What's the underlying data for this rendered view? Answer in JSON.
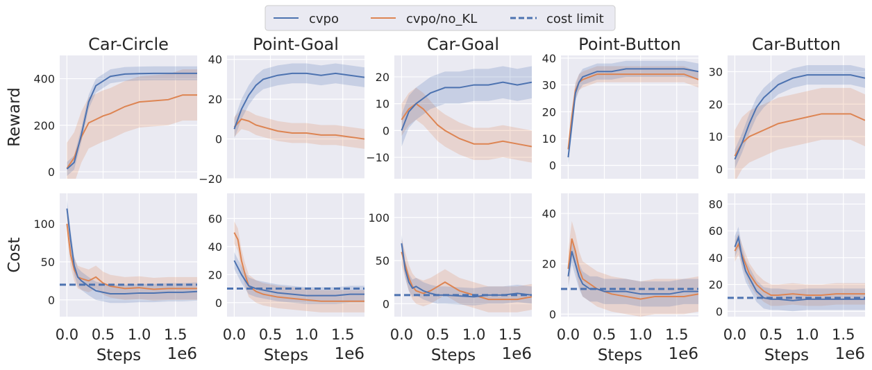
{
  "legend": {
    "entries": [
      {
        "label": "cvpo",
        "color": "#4c72b0",
        "style": "solid"
      },
      {
        "label": "cvpo/no_KL",
        "color": "#dd8452",
        "style": "solid"
      },
      {
        "label": "cost limit",
        "color": "#4c72b0",
        "style": "dashed"
      }
    ]
  },
  "chart_data": [
    {
      "type": "line",
      "title": "Car-Circle",
      "row": "reward",
      "ylabel": "Reward",
      "xlabel": "",
      "xlim": [
        -0.1,
        1.8
      ],
      "ylim": [
        -30,
        500
      ],
      "yticks": [
        {
          "v": 0,
          "label": "0"
        },
        {
          "v": 200,
          "label": "200"
        },
        {
          "v": 400,
          "label": "400"
        }
      ],
      "x": [
        0.0,
        0.1,
        0.2,
        0.3,
        0.4,
        0.5,
        0.6,
        0.8,
        1.0,
        1.2,
        1.4,
        1.6,
        1.8
      ],
      "series": [
        {
          "name": "cvpo",
          "values": [
            12,
            40,
            160,
            300,
            370,
            390,
            410,
            420,
            422,
            423,
            423,
            423,
            423
          ],
          "band": 30
        },
        {
          "name": "cvpo/no_KL",
          "values": [
            15,
            60,
            150,
            210,
            225,
            240,
            250,
            280,
            300,
            305,
            310,
            330,
            330
          ],
          "band": 110
        }
      ]
    },
    {
      "type": "line",
      "title": "Point-Goal",
      "row": "reward",
      "xlabel": "",
      "xlim": [
        -0.1,
        1.8
      ],
      "ylim": [
        -20,
        42
      ],
      "yticks": [
        {
          "v": -20,
          "label": "−20"
        },
        {
          "v": 0,
          "label": "0"
        },
        {
          "v": 20,
          "label": "20"
        },
        {
          "v": 40,
          "label": "40"
        }
      ],
      "x": [
        0.0,
        0.1,
        0.2,
        0.3,
        0.4,
        0.5,
        0.6,
        0.8,
        1.0,
        1.2,
        1.4,
        1.6,
        1.8
      ],
      "series": [
        {
          "name": "cvpo",
          "values": [
            5,
            15,
            22,
            27,
            30,
            31,
            32,
            33,
            33,
            32,
            33,
            32,
            31
          ],
          "band": 5
        },
        {
          "name": "cvpo/no_KL",
          "values": [
            6,
            10,
            9,
            7,
            6,
            5,
            4,
            3,
            3,
            2,
            2,
            1,
            0
          ],
          "band": 5
        }
      ]
    },
    {
      "type": "line",
      "title": "Car-Goal",
      "row": "reward",
      "xlabel": "",
      "xlim": [
        -0.1,
        1.8
      ],
      "ylim": [
        -18,
        28
      ],
      "yticks": [
        {
          "v": -10,
          "label": "−10"
        },
        {
          "v": 0,
          "label": "0"
        },
        {
          "v": 10,
          "label": "10"
        },
        {
          "v": 20,
          "label": "20"
        }
      ],
      "x": [
        0.0,
        0.1,
        0.2,
        0.3,
        0.4,
        0.5,
        0.6,
        0.8,
        1.0,
        1.2,
        1.4,
        1.6,
        1.8
      ],
      "series": [
        {
          "name": "cvpo",
          "values": [
            0,
            7,
            10,
            12,
            14,
            15,
            16,
            16,
            17,
            17,
            18,
            17,
            18
          ],
          "band": 6
        },
        {
          "name": "cvpo/no_KL",
          "values": [
            4,
            8,
            10,
            8,
            5,
            2,
            0,
            -3,
            -5,
            -5,
            -4,
            -5,
            -6
          ],
          "band": 6
        }
      ]
    },
    {
      "type": "line",
      "title": "Point-Button",
      "row": "reward",
      "xlabel": "",
      "xlim": [
        -0.1,
        1.8
      ],
      "ylim": [
        -5,
        41
      ],
      "yticks": [
        {
          "v": 0,
          "label": "0"
        },
        {
          "v": 10,
          "label": "10"
        },
        {
          "v": 20,
          "label": "20"
        },
        {
          "v": 30,
          "label": "30"
        },
        {
          "v": 40,
          "label": "40"
        }
      ],
      "x": [
        0.0,
        0.05,
        0.1,
        0.15,
        0.2,
        0.3,
        0.4,
        0.6,
        0.8,
        1.0,
        1.2,
        1.4,
        1.6,
        1.8
      ],
      "series": [
        {
          "name": "cvpo",
          "values": [
            3,
            15,
            27,
            31,
            33,
            34,
            35,
            35,
            36,
            36,
            36,
            36,
            36,
            35
          ],
          "band": 3
        },
        {
          "name": "cvpo/no_KL",
          "values": [
            6,
            18,
            28,
            31,
            32,
            33,
            34,
            34,
            34,
            34,
            34,
            34,
            34,
            32
          ],
          "band": 3
        }
      ]
    },
    {
      "type": "line",
      "title": "Car-Button",
      "row": "reward",
      "xlabel": "",
      "xlim": [
        -0.1,
        1.8
      ],
      "ylim": [
        -3,
        35
      ],
      "yticks": [
        {
          "v": 0,
          "label": "0"
        },
        {
          "v": 10,
          "label": "10"
        },
        {
          "v": 20,
          "label": "20"
        },
        {
          "v": 30,
          "label": "30"
        }
      ],
      "x": [
        0.0,
        0.1,
        0.2,
        0.3,
        0.4,
        0.5,
        0.6,
        0.8,
        1.0,
        1.2,
        1.4,
        1.6,
        1.8
      ],
      "series": [
        {
          "name": "cvpo",
          "values": [
            3,
            8,
            14,
            19,
            22,
            24,
            26,
            28,
            29,
            29,
            29,
            29,
            28
          ],
          "band": 3
        },
        {
          "name": "cvpo/no_KL",
          "values": [
            4,
            8,
            10,
            11,
            12,
            13,
            14,
            15,
            16,
            17,
            17,
            17,
            15
          ],
          "band": 8
        }
      ]
    },
    {
      "type": "line",
      "title": "",
      "row": "cost",
      "ylabel": "Cost",
      "xlabel": "Steps",
      "offset_label": "1e6",
      "xlim": [
        -0.1,
        1.8
      ],
      "ylim": [
        -22,
        140
      ],
      "cost_limit": 20,
      "yticks": [
        {
          "v": 0,
          "label": "0"
        },
        {
          "v": 50,
          "label": "50"
        },
        {
          "v": 100,
          "label": "100"
        }
      ],
      "xticks": [
        {
          "v": 0.0,
          "label": "0.0"
        },
        {
          "v": 0.5,
          "label": "0.5"
        },
        {
          "v": 1.0,
          "label": "1.0"
        },
        {
          "v": 1.5,
          "label": "1.5"
        }
      ],
      "x": [
        0.0,
        0.05,
        0.1,
        0.15,
        0.2,
        0.3,
        0.4,
        0.5,
        0.6,
        0.8,
        1.0,
        1.2,
        1.4,
        1.6,
        1.8
      ],
      "series": [
        {
          "name": "cvpo",
          "values": [
            120,
            80,
            45,
            30,
            25,
            18,
            12,
            10,
            8,
            8,
            9,
            9,
            10,
            10,
            11
          ],
          "band": 12
        },
        {
          "name": "cvpo/no_KL",
          "values": [
            100,
            60,
            40,
            30,
            28,
            25,
            30,
            22,
            18,
            15,
            16,
            14,
            15,
            15,
            15
          ],
          "band": 15
        }
      ]
    },
    {
      "type": "line",
      "title": "",
      "row": "cost",
      "xlabel": "Steps",
      "offset_label": "1e6",
      "xlim": [
        -0.1,
        1.8
      ],
      "ylim": [
        -10,
        78
      ],
      "cost_limit": 10,
      "yticks": [
        {
          "v": 0,
          "label": "0"
        },
        {
          "v": 20,
          "label": "20"
        },
        {
          "v": 40,
          "label": "40"
        },
        {
          "v": 60,
          "label": "60"
        }
      ],
      "xticks": [
        {
          "v": 0.0,
          "label": "0.0"
        },
        {
          "v": 0.5,
          "label": "0.5"
        },
        {
          "v": 1.0,
          "label": "1.0"
        },
        {
          "v": 1.5,
          "label": "1.5"
        }
      ],
      "x": [
        0.0,
        0.05,
        0.1,
        0.15,
        0.2,
        0.3,
        0.4,
        0.5,
        0.6,
        0.8,
        1.0,
        1.2,
        1.4,
        1.6,
        1.8
      ],
      "series": [
        {
          "name": "cvpo",
          "values": [
            30,
            25,
            20,
            16,
            12,
            10,
            9,
            8,
            7,
            6,
            5,
            5,
            5,
            6,
            6
          ],
          "band": 6
        },
        {
          "name": "cvpo/no_KL",
          "values": [
            50,
            45,
            30,
            20,
            12,
            8,
            6,
            5,
            4,
            3,
            2,
            1,
            1,
            1,
            1
          ],
          "band": 8
        }
      ]
    },
    {
      "type": "line",
      "title": "",
      "row": "cost",
      "xlabel": "Steps",
      "offset_label": "1e6",
      "xlim": [
        -0.1,
        1.8
      ],
      "ylim": [
        -15,
        128
      ],
      "cost_limit": 10,
      "yticks": [
        {
          "v": 0,
          "label": "0"
        },
        {
          "v": 50,
          "label": "50"
        },
        {
          "v": 100,
          "label": "100"
        }
      ],
      "xticks": [
        {
          "v": 0.0,
          "label": "0.0"
        },
        {
          "v": 0.5,
          "label": "0.5"
        },
        {
          "v": 1.0,
          "label": "1.0"
        },
        {
          "v": 1.5,
          "label": "1.5"
        }
      ],
      "x": [
        0.0,
        0.05,
        0.1,
        0.15,
        0.2,
        0.3,
        0.4,
        0.5,
        0.6,
        0.8,
        1.0,
        1.2,
        1.4,
        1.6,
        1.8
      ],
      "series": [
        {
          "name": "cvpo",
          "values": [
            70,
            40,
            25,
            18,
            20,
            15,
            12,
            10,
            10,
            9,
            8,
            10,
            10,
            12,
            10
          ],
          "band": 10
        },
        {
          "name": "cvpo/no_KL",
          "values": [
            60,
            45,
            30,
            20,
            15,
            12,
            15,
            20,
            25,
            15,
            10,
            5,
            5,
            5,
            8
          ],
          "band": 15
        }
      ]
    },
    {
      "type": "line",
      "title": "",
      "row": "cost",
      "xlabel": "Steps",
      "offset_label": "1e6",
      "xlim": [
        -0.1,
        1.8
      ],
      "ylim": [
        -1,
        48
      ],
      "cost_limit": 10,
      "yticks": [
        {
          "v": 0,
          "label": "0"
        },
        {
          "v": 20,
          "label": "20"
        },
        {
          "v": 40,
          "label": "40"
        }
      ],
      "xticks": [
        {
          "v": 0.0,
          "label": "0.0"
        },
        {
          "v": 0.5,
          "label": "0.5"
        },
        {
          "v": 1.0,
          "label": "1.0"
        },
        {
          "v": 1.5,
          "label": "1.5"
        }
      ],
      "x": [
        0.0,
        0.05,
        0.1,
        0.15,
        0.2,
        0.3,
        0.4,
        0.5,
        0.6,
        0.8,
        1.0,
        1.2,
        1.4,
        1.6,
        1.8
      ],
      "series": [
        {
          "name": "cvpo",
          "values": [
            15,
            25,
            20,
            15,
            12,
            10,
            10,
            9,
            9,
            9,
            8,
            8,
            8,
            9,
            9
          ],
          "band": 5
        },
        {
          "name": "cvpo/no_KL",
          "values": [
            18,
            30,
            25,
            18,
            14,
            12,
            10,
            9,
            8,
            7,
            6,
            7,
            7,
            7,
            8
          ],
          "band": 7
        }
      ]
    },
    {
      "type": "line",
      "title": "",
      "row": "cost",
      "xlabel": "Steps",
      "offset_label": "1e6",
      "xlim": [
        -0.1,
        1.8
      ],
      "ylim": [
        -4,
        88
      ],
      "cost_limit": 10,
      "yticks": [
        {
          "v": 0,
          "label": "0"
        },
        {
          "v": 20,
          "label": "20"
        },
        {
          "v": 40,
          "label": "40"
        },
        {
          "v": 60,
          "label": "60"
        },
        {
          "v": 80,
          "label": "80"
        }
      ],
      "xticks": [
        {
          "v": 0.0,
          "label": "0.0"
        },
        {
          "v": 0.5,
          "label": "0.5"
        },
        {
          "v": 1.0,
          "label": "1.0"
        },
        {
          "v": 1.5,
          "label": "1.5"
        }
      ],
      "x": [
        0.0,
        0.05,
        0.1,
        0.15,
        0.2,
        0.3,
        0.4,
        0.5,
        0.6,
        0.8,
        1.0,
        1.2,
        1.4,
        1.6,
        1.8
      ],
      "series": [
        {
          "name": "cvpo",
          "values": [
            48,
            55,
            40,
            30,
            25,
            15,
            10,
            9,
            9,
            8,
            9,
            9,
            9,
            9,
            9
          ],
          "band": 8
        },
        {
          "name": "cvpo/no_KL",
          "values": [
            45,
            50,
            42,
            35,
            28,
            20,
            15,
            12,
            12,
            13,
            12,
            12,
            13,
            13,
            13
          ],
          "band": 8
        }
      ]
    }
  ]
}
